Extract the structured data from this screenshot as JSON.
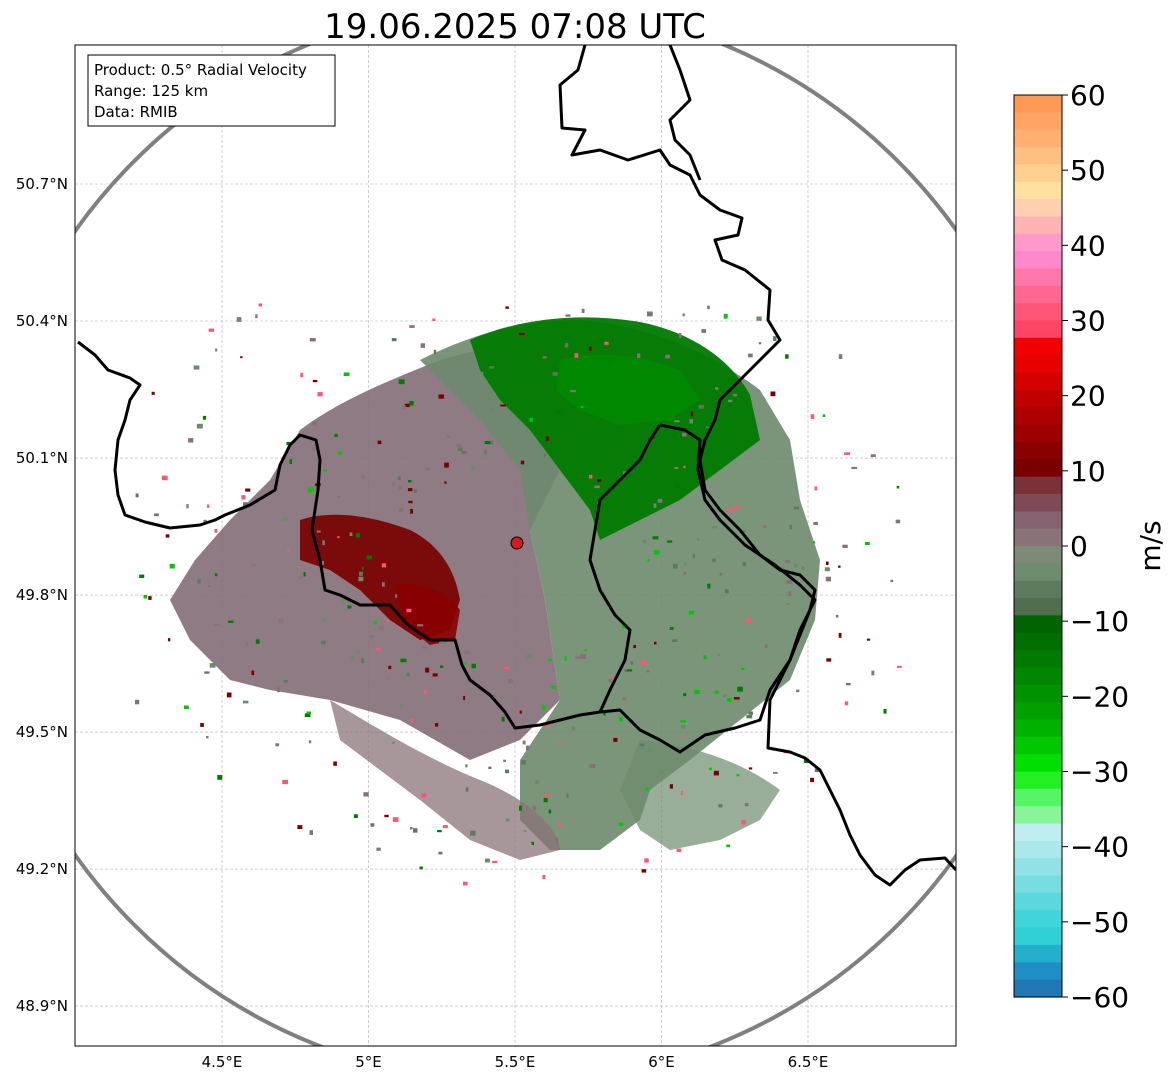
{
  "title": "19.06.2025 07:08 UTC",
  "info_box": {
    "product": "Product: 0.5° Radial Velocity",
    "range": "Range: 125 km",
    "data": "Data: RMIB"
  },
  "axes": {
    "lon_ticks": [
      "4.5°E",
      "5°E",
      "5.5°E",
      "6°E",
      "6.5°E"
    ],
    "lat_ticks": [
      "50.7°N",
      "50.4°N",
      "50.1°N",
      "49.8°N",
      "49.5°N",
      "49.2°N",
      "48.9°N"
    ],
    "lon_values": [
      4.5,
      5.0,
      5.5,
      6.0,
      6.5
    ],
    "lat_values": [
      50.7,
      50.4,
      50.1,
      49.8,
      49.5,
      49.2,
      48.9
    ],
    "lon_range": [
      4.0,
      7.0
    ],
    "lat_range": [
      48.8,
      51.0
    ],
    "grid": true
  },
  "radar_site": {
    "lon": 5.505,
    "lat": 49.914,
    "color": "#d71920"
  },
  "colorbar": {
    "label": "m/s",
    "min": -60,
    "max": 60,
    "ticks": [
      "60",
      "50",
      "40",
      "30",
      "20",
      "10",
      "0",
      "−10",
      "−20",
      "−30",
      "−40",
      "−50",
      "−60"
    ],
    "colors_top_to_bottom": [
      "#ff9955",
      "#ffa463",
      "#ffb070",
      "#ffbf80",
      "#ffd090",
      "#ffe0a0",
      "#ffd0b0",
      "#ffb3b3",
      "#ff99cc",
      "#ff88cc",
      "#ff77aa",
      "#ff6690",
      "#ff5577",
      "#ff4466",
      "#f20000",
      "#e60000",
      "#d40000",
      "#c00000",
      "#ae0000",
      "#9c0000",
      "#8a0000",
      "#780000",
      "#7a3238",
      "#7e4a55",
      "#84626f",
      "#8a7378",
      "#7e8a78",
      "#6e8c6e",
      "#5e7a5e",
      "#4f6f4f",
      "#006400",
      "#006f00",
      "#007a00",
      "#008600",
      "#009200",
      "#00a000",
      "#00b200",
      "#00c800",
      "#00e000",
      "#22f022",
      "#55f566",
      "#88f599",
      "#bfeef0",
      "#aae8eb",
      "#90e2e6",
      "#76dde0",
      "#5ad8dc",
      "#40d5d8",
      "#2fd0d6",
      "#24b0cc",
      "#1f8ec6",
      "#1f77b4"
    ]
  }
}
